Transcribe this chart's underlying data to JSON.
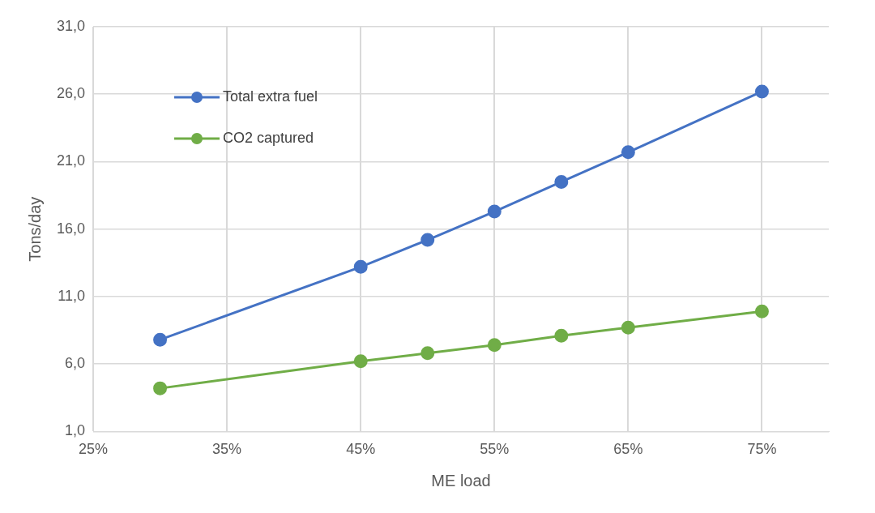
{
  "chart_data": {
    "type": "line",
    "xlabel": "ME load",
    "ylabel": "Tons/day",
    "x": [
      30,
      45,
      50,
      55,
      60,
      65,
      75
    ],
    "series": [
      {
        "name": "Total extra fuel",
        "color": "#4472c4",
        "values": [
          7.8,
          13.2,
          15.2,
          17.3,
          19.5,
          21.7,
          26.2
        ]
      },
      {
        "name": "CO2 captured",
        "color": "#70ad47",
        "values": [
          4.2,
          6.2,
          6.8,
          7.4,
          8.1,
          8.7,
          9.9
        ]
      }
    ],
    "xlim": [
      25,
      80
    ],
    "xticks": [
      {
        "value": 25,
        "label": "25%"
      },
      {
        "value": 35,
        "label": "35%"
      },
      {
        "value": 45,
        "label": "45%"
      },
      {
        "value": 55,
        "label": "55%"
      },
      {
        "value": 65,
        "label": "65%"
      },
      {
        "value": 75,
        "label": "75%"
      }
    ],
    "ylim": [
      1,
      31
    ],
    "yticks": [
      {
        "value": 1,
        "label": "1,0"
      },
      {
        "value": 6,
        "label": "6,0"
      },
      {
        "value": 11,
        "label": "11,0"
      },
      {
        "value": 16,
        "label": "16,0"
      },
      {
        "value": 21,
        "label": "21,0"
      },
      {
        "value": 26,
        "label": "26,0"
      },
      {
        "value": 31,
        "label": "31,0"
      }
    ],
    "grid": true,
    "legend": "top left",
    "marker": "circle",
    "line_style": "solid"
  }
}
